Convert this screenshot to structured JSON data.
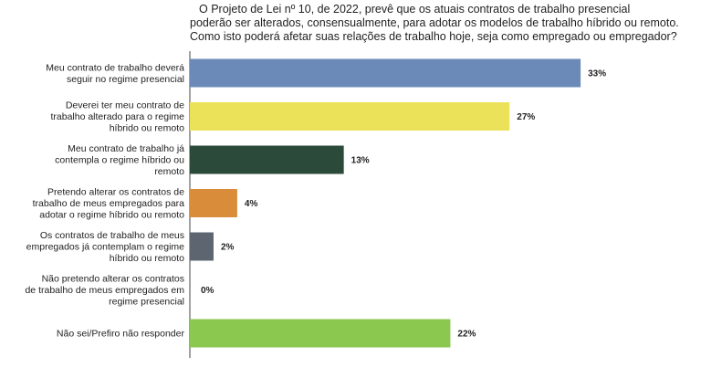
{
  "chart_data": {
    "type": "bar",
    "orientation": "horizontal",
    "title_lines": [
      "O Projeto de Lei nº 10, de 2022, prevê que os atuais contratos de trabalho presencial",
      "poderão ser alterados, consensualmente, para adotar os modelos de trabalho híbrido ou remoto.",
      "Como isto poderá afetar suas relações de trabalho hoje, seja como empregado ou empregador?"
    ],
    "categories": [
      [
        "Meu contrato de trabalho deverá",
        "seguir no regime presencial"
      ],
      [
        "Deverei ter meu contrato de",
        "trabalho alterado para o regime",
        "híbrido ou remoto"
      ],
      [
        "Meu contrato de trabalho já",
        "contempla o regime híbrido ou",
        "remoto"
      ],
      [
        "Pretendo alterar os contratos de",
        "trabalho de meus empregados para",
        "adotar o regime híbrido ou remoto"
      ],
      [
        "Os contratos de trabalho de meus",
        "empregados já contemplam o regime",
        "híbrido ou remoto"
      ],
      [
        "Não pretendo alterar os contratos",
        "de trabalho de meus empregados em",
        "regime presencial"
      ],
      [
        "Não sei/Prefiro não responder"
      ]
    ],
    "values": [
      33,
      27,
      13,
      4,
      2,
      0,
      22
    ],
    "value_labels": [
      "33%",
      "27%",
      "13%",
      "4%",
      "2%",
      "0%",
      "22%"
    ],
    "colors": [
      "#6b8ab8",
      "#ece25a",
      "#2b4a3a",
      "#d98c3a",
      "#5c6570",
      "#cccccc",
      "#8bc84f"
    ],
    "xlim": [
      0,
      37
    ],
    "grid": false,
    "legend": "none"
  }
}
